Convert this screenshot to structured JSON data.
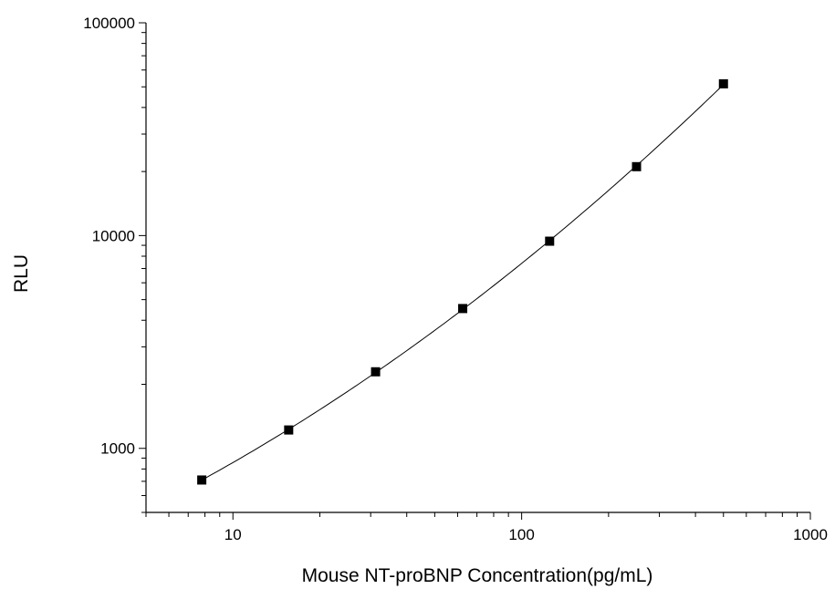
{
  "chart_data": {
    "type": "scatter",
    "title": "",
    "xlabel": "Mouse NT-proBNP Concentration(pg/mL)",
    "ylabel": "RLU",
    "x_scale": "log",
    "y_scale": "log",
    "xlim": [
      5,
      1000
    ],
    "ylim": [
      500,
      100000
    ],
    "x_ticks": [
      10,
      100,
      1000
    ],
    "x_tick_labels": [
      "10",
      "100",
      "1000"
    ],
    "y_ticks": [
      1000,
      10000,
      100000
    ],
    "y_tick_labels": [
      "1000",
      "10000",
      "100000"
    ],
    "grid": false,
    "legend": "none",
    "series": [
      {
        "x": [
          7.8,
          15.6,
          31.2,
          62.5,
          125,
          250,
          500
        ],
        "y": [
          710,
          1220,
          2290,
          4540,
          9410,
          21080,
          51660
        ],
        "marker": "square",
        "fitted_curve": true
      }
    ],
    "colors": {
      "axis": "#000000",
      "marker": "#000000",
      "line": "#000000"
    }
  }
}
